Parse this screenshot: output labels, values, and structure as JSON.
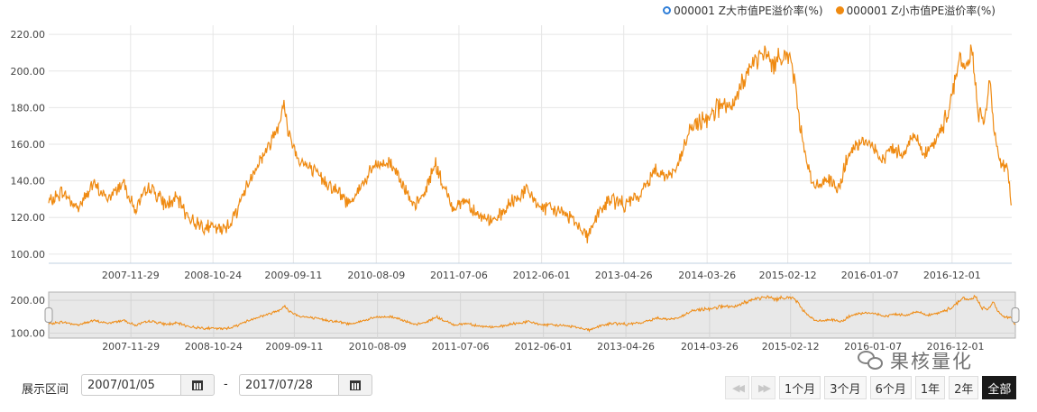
{
  "legend": {
    "items": [
      {
        "label": "000001 Z大市值PE溢价率(%)",
        "color": "#2f7ed8",
        "hollow": true
      },
      {
        "label": "000001 Z小市值PE溢价率(%)",
        "color": "#ef8a11",
        "hollow": false
      }
    ]
  },
  "chart_data": {
    "type": "line",
    "title": "",
    "xlabel": "",
    "ylabel": "",
    "x_range": [
      "2007-01-05",
      "2017-07-28"
    ],
    "ylim": [
      95,
      225
    ],
    "y_ticks": [
      "100.00",
      "120.00",
      "140.00",
      "160.00",
      "180.00",
      "200.00",
      "220.00"
    ],
    "x_ticks": [
      "2007-11-29",
      "2008-10-24",
      "2009-09-11",
      "2010-08-09",
      "2011-07-06",
      "2012-06-01",
      "2013-04-26",
      "2014-03-26",
      "2015-02-12",
      "2016-01-07",
      "2016-12-01"
    ],
    "grid": true,
    "legend_position": "top-right",
    "series": [
      {
        "name": "000001 Z小市值PE溢价率(%)",
        "color": "#ef8a11",
        "points": [
          [
            "2007-01-05",
            128
          ],
          [
            "2007-03-01",
            134
          ],
          [
            "2007-05-01",
            125
          ],
          [
            "2007-07-01",
            138
          ],
          [
            "2007-09-01",
            130
          ],
          [
            "2007-11-01",
            140
          ],
          [
            "2007-12-15",
            124
          ],
          [
            "2008-02-15",
            137
          ],
          [
            "2008-04-15",
            127
          ],
          [
            "2008-06-01",
            130
          ],
          [
            "2008-08-01",
            118
          ],
          [
            "2008-10-01",
            115
          ],
          [
            "2008-12-01",
            113
          ],
          [
            "2009-01-15",
            120
          ],
          [
            "2009-03-01",
            135
          ],
          [
            "2009-04-15",
            148
          ],
          [
            "2009-06-01",
            158
          ],
          [
            "2009-07-01",
            167
          ],
          [
            "2009-08-01",
            182
          ],
          [
            "2009-08-20",
            168
          ],
          [
            "2009-10-01",
            152
          ],
          [
            "2009-12-01",
            145
          ],
          [
            "2010-01-15",
            140
          ],
          [
            "2010-03-01",
            135
          ],
          [
            "2010-04-15",
            128
          ],
          [
            "2010-06-01",
            135
          ],
          [
            "2010-08-01",
            148
          ],
          [
            "2010-10-01",
            150
          ],
          [
            "2010-11-15",
            142
          ],
          [
            "2011-01-01",
            125
          ],
          [
            "2011-02-15",
            132
          ],
          [
            "2011-04-01",
            150
          ],
          [
            "2011-05-01",
            138
          ],
          [
            "2011-06-15",
            125
          ],
          [
            "2011-08-01",
            130
          ],
          [
            "2011-10-01",
            120
          ],
          [
            "2011-12-01",
            118
          ],
          [
            "2012-02-01",
            128
          ],
          [
            "2012-04-01",
            135
          ],
          [
            "2012-06-01",
            125
          ],
          [
            "2012-08-01",
            124
          ],
          [
            "2012-10-01",
            120
          ],
          [
            "2012-12-01",
            110
          ],
          [
            "2013-01-15",
            122
          ],
          [
            "2013-03-01",
            130
          ],
          [
            "2013-05-01",
            127
          ],
          [
            "2013-07-01",
            132
          ],
          [
            "2013-09-01",
            147
          ],
          [
            "2013-10-15",
            142
          ],
          [
            "2013-12-01",
            148
          ],
          [
            "2014-01-15",
            168
          ],
          [
            "2014-03-01",
            172
          ],
          [
            "2014-04-15",
            178
          ],
          [
            "2014-06-01",
            182
          ],
          [
            "2014-07-01",
            177
          ],
          [
            "2014-08-15",
            195
          ],
          [
            "2014-10-01",
            205
          ],
          [
            "2014-11-15",
            210
          ],
          [
            "2014-12-15",
            203
          ],
          [
            "2015-01-20",
            210
          ],
          [
            "2015-03-01",
            205
          ],
          [
            "2015-04-01",
            172
          ],
          [
            "2015-05-01",
            150
          ],
          [
            "2015-06-01",
            135
          ],
          [
            "2015-07-15",
            142
          ],
          [
            "2015-09-01",
            135
          ],
          [
            "2015-10-15",
            155
          ],
          [
            "2015-12-01",
            160
          ],
          [
            "2016-01-07",
            162
          ],
          [
            "2016-02-15",
            150
          ],
          [
            "2016-04-01",
            158
          ],
          [
            "2016-05-15",
            155
          ],
          [
            "2016-07-01",
            165
          ],
          [
            "2016-08-15",
            155
          ],
          [
            "2016-10-01",
            162
          ],
          [
            "2016-11-15",
            178
          ],
          [
            "2017-01-01",
            208
          ],
          [
            "2017-01-20",
            200
          ],
          [
            "2017-02-20",
            212
          ],
          [
            "2017-03-15",
            175
          ],
          [
            "2017-04-15",
            178
          ],
          [
            "2017-05-01",
            192
          ],
          [
            "2017-05-20",
            165
          ],
          [
            "2017-06-15",
            150
          ],
          [
            "2017-07-10",
            145
          ],
          [
            "2017-07-28",
            127
          ]
        ]
      }
    ]
  },
  "navigator": {
    "y_ticks": [
      "100.00",
      "200.00"
    ]
  },
  "controls": {
    "range_label": "展示区间",
    "start_date": "2007/01/05",
    "end_date": "2017/07/28",
    "dash": "-",
    "zoom_buttons": [
      "1个月",
      "3个月",
      "6个月",
      "1年",
      "2年",
      "全部"
    ],
    "active_zoom": "全部"
  },
  "watermark": {
    "text": "果核量化"
  }
}
